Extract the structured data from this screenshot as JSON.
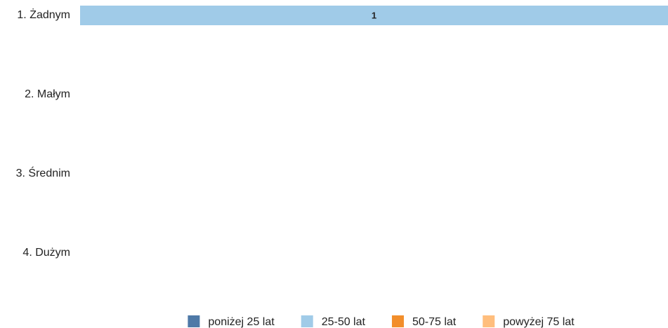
{
  "chart_data": {
    "type": "bar",
    "orientation": "horizontal",
    "stacked": true,
    "categories": [
      "1. Żadnym",
      "2. Małym",
      "3. Średnim",
      "4. Dużym"
    ],
    "series": [
      {
        "name": "poniżej 25 lat",
        "color": "#4e79a7",
        "values": [
          0,
          0,
          0,
          0
        ]
      },
      {
        "name": "25-50 lat",
        "color": "#a0cbe8",
        "values": [
          1,
          0,
          0,
          0
        ]
      },
      {
        "name": "50-75 lat",
        "color": "#f28e2b",
        "values": [
          0,
          0,
          0,
          0
        ]
      },
      {
        "name": "powyżej 75 lat",
        "color": "#ffbe7d",
        "values": [
          0,
          0,
          0,
          0
        ]
      }
    ],
    "xlim": [
      0,
      1
    ],
    "legend": "bottom",
    "data_labels": true
  }
}
